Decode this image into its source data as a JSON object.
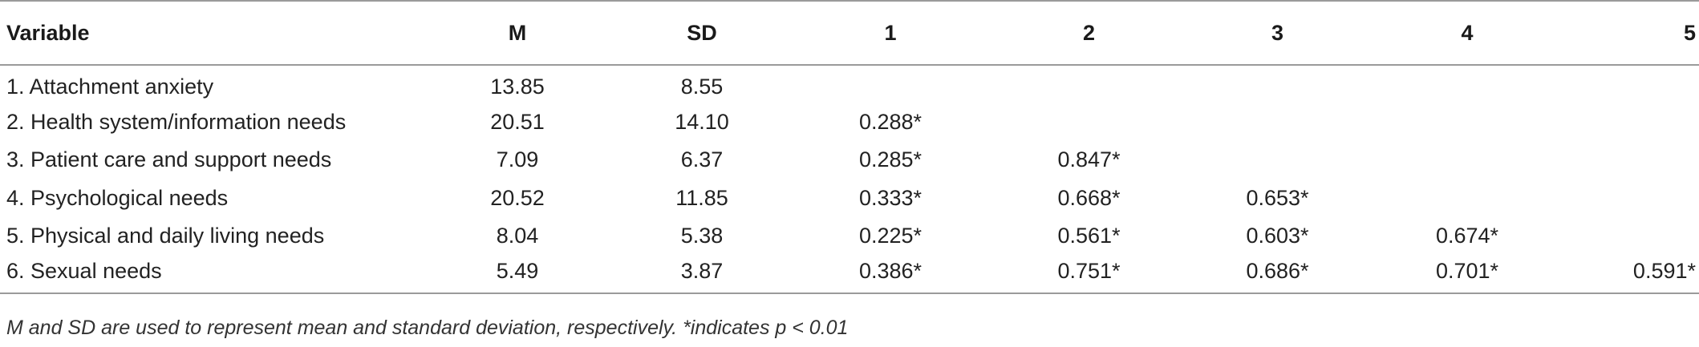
{
  "table": {
    "headers": [
      "Variable",
      "M",
      "SD",
      "1",
      "2",
      "3",
      "4",
      "5"
    ],
    "rows": [
      [
        "1. Attachment anxiety",
        "13.85",
        "8.55",
        "",
        "",
        "",
        "",
        ""
      ],
      [
        "2. Health system/information needs",
        "20.51",
        "14.10",
        "0.288*",
        "",
        "",
        "",
        ""
      ],
      [
        "3. Patient care and support needs",
        "7.09",
        "6.37",
        "0.285*",
        "0.847*",
        "",
        "",
        ""
      ],
      [
        "4. Psychological needs",
        "20.52",
        "11.85",
        "0.333*",
        "0.668*",
        "0.653*",
        "",
        ""
      ],
      [
        "5. Physical and daily living needs",
        "8.04",
        "5.38",
        "0.225*",
        "0.561*",
        "0.603*",
        "0.674*",
        ""
      ],
      [
        "6. Sexual needs",
        "5.49",
        "3.87",
        "0.386*",
        "0.751*",
        "0.686*",
        "0.701*",
        "0.591*"
      ]
    ]
  },
  "note": "M and SD are used to represent mean and standard deviation, respectively. *indicates p < 0.01"
}
